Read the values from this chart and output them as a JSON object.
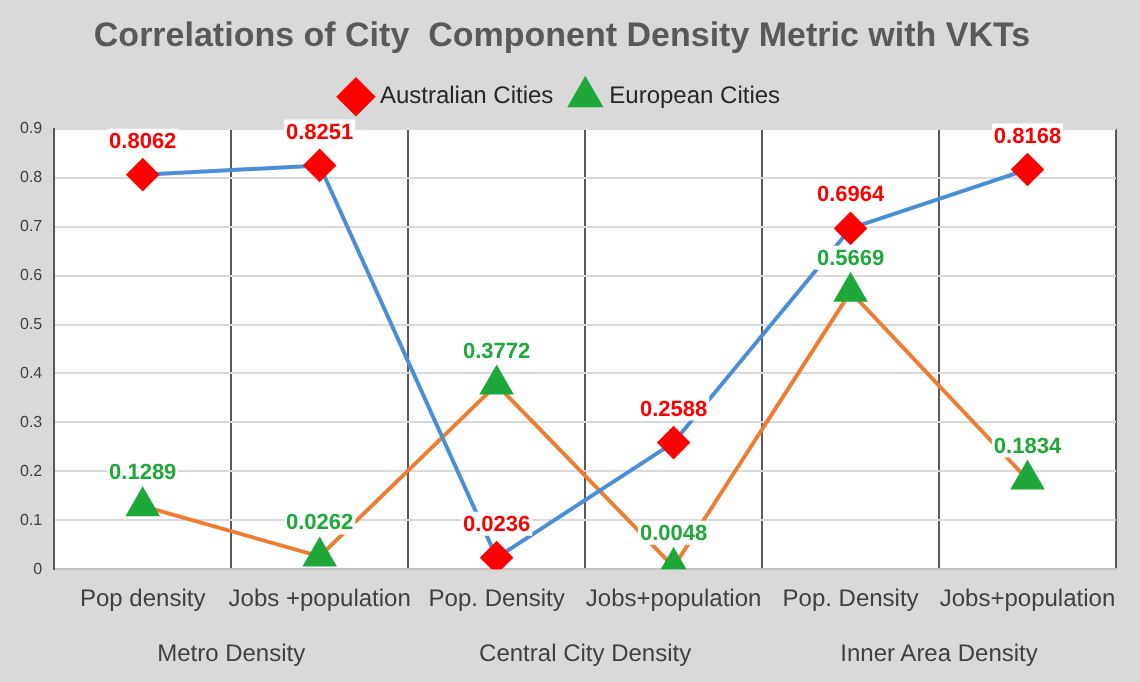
{
  "chart_data": {
    "type": "line",
    "title": "Correlations of City  Component Density Metric with VKTs",
    "categories": [
      "Pop density",
      "Jobs +population",
      "Pop. Density",
      "Jobs+population",
      "Pop. Density",
      "Jobs+population"
    ],
    "annotations": [
      "Metro Density",
      "Central City Density",
      "Inner Area Density"
    ],
    "series": [
      {
        "name": "Australian Cities",
        "color": "#4a8fd6",
        "colors": [
          "#ff0000",
          "#ff0000",
          "#ff0000",
          "#ff0000",
          "#ff0000",
          "#ff0000"
        ],
        "marker": "diamond",
        "values": [
          0.8062,
          0.8251,
          0.0236,
          0.2588,
          0.6964,
          0.8168
        ]
      },
      {
        "name": "European Cities",
        "color": "#ed7d31",
        "colors": [
          "#1fa83a",
          "#1fa83a",
          "#1fa83a",
          "#1fa83a",
          "#1fa83a",
          "#1fa83a"
        ],
        "marker": "triangle",
        "values": [
          0.1289,
          0.0262,
          0.3772,
          0.0048,
          0.5669,
          0.1834
        ]
      }
    ],
    "ylim": [
      0,
      0.9
    ],
    "yticks": [
      0,
      0.1,
      0.2,
      0.3,
      0.4,
      0.5,
      0.6,
      0.7,
      0.8,
      0.9
    ],
    "grid": true,
    "legend": "top",
    "data_labels": true
  }
}
